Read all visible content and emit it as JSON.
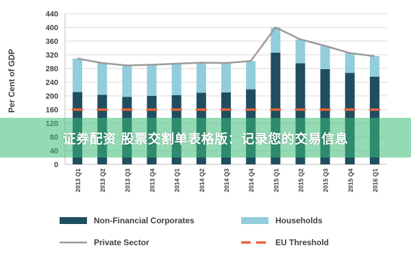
{
  "chart_data": {
    "type": "bar",
    "title": "",
    "xlabel": "",
    "ylabel": "Per Cent of GDP",
    "ylim": [
      0,
      440
    ],
    "yticks": [
      0,
      40,
      80,
      120,
      160,
      200,
      240,
      280,
      320,
      360,
      400,
      440
    ],
    "grid": true,
    "stacked": true,
    "legend_placement": "bottom",
    "categories": [
      "2013 Q1",
      "2013 Q2",
      "2013 Q3",
      "2013 Q4",
      "2014 Q1",
      "2014 Q2",
      "2014 Q3",
      "2014 Q4",
      "2015 Q1",
      "2015 Q2",
      "2015 Q3",
      "2015 Q4",
      "2016 Q1"
    ],
    "series": [
      {
        "name": "Non-Financial Corporates",
        "kind": "bar",
        "color": "#1f4e5f",
        "values": [
          211,
          203,
          197,
          200,
          202,
          209,
          210,
          219,
          326,
          295,
          278,
          267,
          256
        ]
      },
      {
        "name": "Households",
        "kind": "bar",
        "color": "#92cddc",
        "values": [
          98,
          93,
          92,
          91,
          92,
          88,
          86,
          83,
          74,
          70,
          68,
          58,
          60
        ]
      },
      {
        "name": "Private Sector",
        "kind": "line",
        "color": "#9a9a9a",
        "values": [
          309,
          296,
          289,
          291,
          294,
          297,
          296,
          302,
          400,
          365,
          346,
          325,
          316
        ]
      },
      {
        "name": "EU Threshold",
        "kind": "line",
        "style": "dashed",
        "color": "#e8643c",
        "values": [
          160,
          160,
          160,
          160,
          160,
          160,
          160,
          160,
          160,
          160,
          160,
          160,
          160
        ]
      }
    ]
  },
  "banner": {
    "text": "证券配资 股票交割单表格版：记录您的交易信息"
  }
}
